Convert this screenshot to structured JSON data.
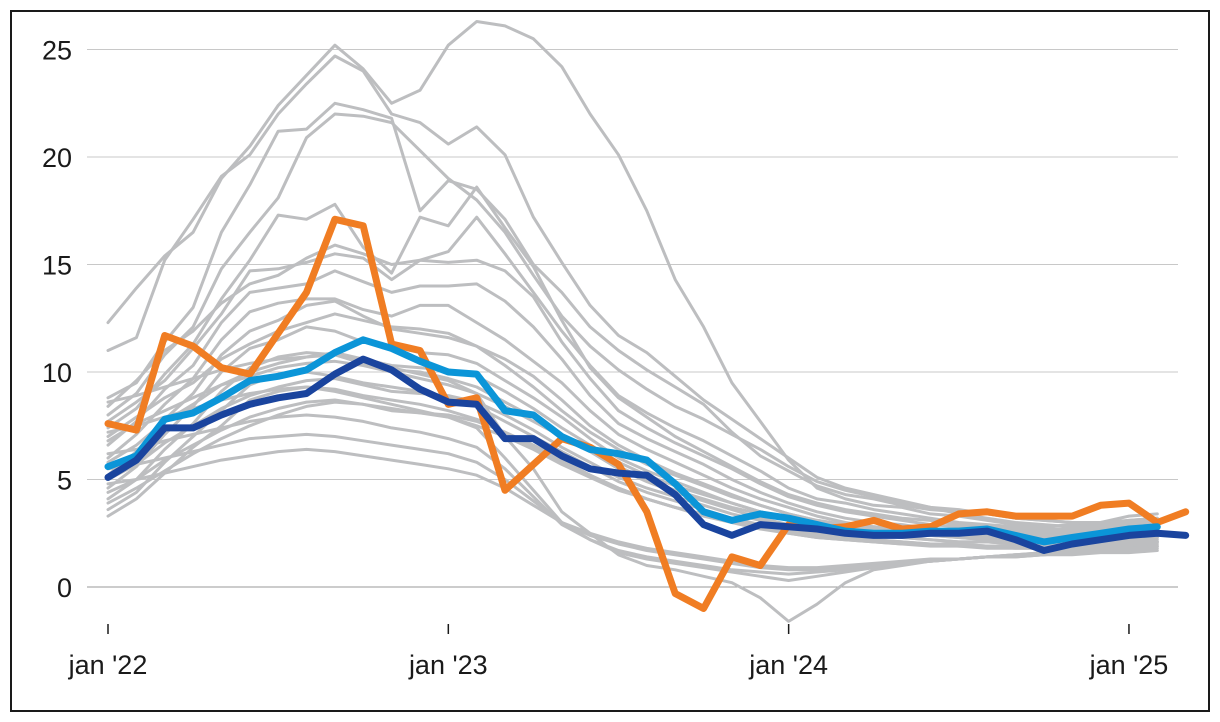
{
  "chart_data": {
    "type": "line",
    "title": "",
    "xlabel": "",
    "ylabel": "",
    "x_ticks": [
      "jan '22",
      "jan '23",
      "jan '24",
      "jan '25"
    ],
    "x_tick_months": [
      0,
      12,
      24,
      36
    ],
    "y_ticks": [
      "0",
      "5",
      "10",
      "15",
      "20",
      "25"
    ],
    "y_tick_values": [
      0,
      5,
      10,
      15,
      20,
      25
    ],
    "ylim": [
      -1.8,
      26.5
    ],
    "xlim": [
      0,
      38
    ],
    "grid": true,
    "colors": {
      "background_series": "#bdbec0",
      "highlight_orange": "#f07d23",
      "highlight_lightblue": "#0b95d8",
      "highlight_darkblue": "#1a449e",
      "grid": "#c8c8c8",
      "axis": "#1a1a1a"
    },
    "background_series": [
      {
        "name": "series 1",
        "values": [
          12.3,
          13.9,
          15.4,
          16.5,
          19.0,
          20.5,
          22.4,
          23.8,
          25.2,
          24.1,
          22.5,
          23.1,
          25.2,
          26.3,
          26.1,
          25.5,
          24.2,
          22.0,
          20.1,
          17.5,
          14.3,
          12.1,
          9.5,
          7.7,
          5.9,
          4.6,
          4.1,
          3.8,
          3.7,
          3.4,
          3.3,
          3.1,
          2.9,
          2.8,
          2.9,
          3.0,
          3.3,
          3.4
        ]
      },
      {
        "name": "series 2",
        "values": [
          11.0,
          11.6,
          15.2,
          17.1,
          19.1,
          20.1,
          22.0,
          23.4,
          24.7,
          24.0,
          22.0,
          21.6,
          20.6,
          21.4,
          20.1,
          17.2,
          15.1,
          13.1,
          11.7,
          10.9,
          9.8,
          8.7,
          7.8,
          6.9,
          6.0,
          5.1,
          4.6,
          4.3,
          4.0,
          3.7,
          3.4,
          3.2,
          3.0,
          2.9,
          2.8,
          2.9,
          3.1,
          3.2
        ]
      },
      {
        "name": "series 3",
        "values": [
          8.8,
          9.5,
          11.4,
          13.0,
          16.5,
          18.7,
          21.2,
          21.3,
          22.5,
          22.2,
          21.8,
          17.5,
          18.9,
          18.5,
          17.1,
          15.0,
          13.7,
          12.1,
          11.0,
          10.1,
          9.3,
          8.5,
          7.2,
          6.1,
          5.4,
          4.7,
          4.3,
          4.1,
          3.8,
          3.6,
          3.5,
          3.4,
          3.2,
          3.1,
          3.0,
          3.0,
          3.1,
          3.2
        ]
      },
      {
        "name": "series 4",
        "values": [
          8.0,
          9.0,
          10.8,
          12.1,
          14.8,
          16.5,
          18.1,
          20.9,
          22.0,
          21.9,
          21.6,
          20.3,
          19.0,
          18.0,
          16.5,
          14.5,
          12.6,
          11.2,
          10.1,
          9.2,
          8.4,
          7.8,
          7.1,
          6.4,
          5.6,
          4.9,
          4.5,
          4.2,
          3.9,
          3.7,
          3.6,
          3.4,
          3.2,
          3.1,
          3.0,
          2.9,
          3.0,
          3.1
        ]
      },
      {
        "name": "series 5",
        "values": [
          7.4,
          8.3,
          9.9,
          11.3,
          13.4,
          15.2,
          17.3,
          17.1,
          17.8,
          15.8,
          14.6,
          17.2,
          16.8,
          18.6,
          16.7,
          14.9,
          12.4,
          10.2,
          8.8,
          7.9,
          7.0,
          6.3,
          5.6,
          4.9,
          4.3,
          3.9,
          3.6,
          3.4,
          3.2,
          3.1,
          2.9,
          2.8,
          2.7,
          2.6,
          2.6,
          2.7,
          2.8,
          2.9
        ]
      },
      {
        "name": "series 6",
        "values": [
          7.7,
          8.6,
          9.6,
          11.1,
          12.7,
          14.7,
          14.8,
          15.1,
          15.5,
          15.3,
          14.3,
          15.2,
          15.1,
          15.2,
          14.7,
          13.5,
          11.4,
          9.7,
          8.2,
          7.4,
          6.7,
          6.1,
          5.5,
          4.8,
          4.2,
          3.8,
          3.5,
          3.3,
          3.1,
          2.9,
          2.8,
          2.7,
          2.6,
          2.5,
          2.5,
          2.6,
          2.7,
          2.8
        ]
      },
      {
        "name": "series 7",
        "values": [
          6.6,
          7.7,
          9.2,
          10.3,
          12.3,
          13.7,
          13.9,
          14.1,
          14.7,
          14.2,
          13.7,
          14.0,
          14.0,
          14.1,
          13.3,
          12.1,
          10.6,
          8.9,
          7.6,
          6.9,
          6.3,
          5.7,
          5.0,
          4.4,
          3.9,
          3.5,
          3.2,
          3.0,
          2.9,
          2.7,
          2.6,
          2.6,
          2.5,
          2.4,
          2.4,
          2.5,
          2.6,
          2.7
        ]
      },
      {
        "name": "series 8",
        "values": [
          6.0,
          7.1,
          8.5,
          9.7,
          11.5,
          12.8,
          13.2,
          13.4,
          13.4,
          12.9,
          12.6,
          13.1,
          13.1,
          12.3,
          11.5,
          10.5,
          9.5,
          8.2,
          7.1,
          6.4,
          5.8,
          5.2,
          4.6,
          4.1,
          3.7,
          3.3,
          3.0,
          2.8,
          2.7,
          2.6,
          2.5,
          2.4,
          2.3,
          2.3,
          2.3,
          2.4,
          2.5,
          2.6
        ]
      },
      {
        "name": "series 9",
        "values": [
          5.2,
          6.3,
          7.8,
          9.0,
          10.8,
          11.9,
          12.4,
          13.1,
          13.3,
          12.6,
          12.0,
          11.8,
          11.6,
          11.2,
          10.6,
          9.8,
          8.7,
          7.5,
          6.6,
          5.9,
          5.3,
          4.8,
          4.3,
          3.8,
          3.4,
          3.1,
          2.9,
          2.7,
          2.6,
          2.5,
          2.4,
          2.3,
          2.3,
          2.2,
          2.2,
          2.3,
          2.4,
          2.5
        ]
      },
      {
        "name": "series 10",
        "values": [
          4.6,
          5.6,
          7.1,
          8.4,
          10.0,
          11.1,
          11.5,
          12.1,
          11.9,
          11.4,
          11.2,
          10.9,
          10.8,
          10.4,
          9.6,
          8.8,
          7.9,
          6.9,
          6.0,
          5.4,
          4.9,
          4.4,
          3.9,
          3.5,
          3.2,
          2.9,
          2.7,
          2.6,
          2.5,
          2.4,
          2.3,
          2.2,
          2.2,
          2.1,
          2.1,
          2.2,
          2.3,
          2.4
        ]
      },
      {
        "name": "series 11",
        "values": [
          4.1,
          5.0,
          6.4,
          7.6,
          9.1,
          10.2,
          10.7,
          10.9,
          10.8,
          10.4,
          10.1,
          10.0,
          9.7,
          9.3,
          8.6,
          7.9,
          7.0,
          6.3,
          5.5,
          4.9,
          4.4,
          4.0,
          3.6,
          3.2,
          2.9,
          2.7,
          2.5,
          2.4,
          2.3,
          2.2,
          2.1,
          2.1,
          2.0,
          2.0,
          2.0,
          2.1,
          2.2,
          2.3
        ]
      },
      {
        "name": "series 12",
        "values": [
          3.6,
          4.4,
          5.8,
          7.0,
          8.2,
          9.4,
          9.9,
          10.0,
          9.8,
          9.5,
          9.3,
          9.1,
          8.8,
          8.4,
          7.7,
          7.0,
          6.3,
          5.6,
          4.9,
          4.4,
          4.0,
          3.6,
          3.2,
          2.9,
          2.7,
          2.5,
          2.3,
          2.2,
          2.1,
          2.0,
          2.0,
          1.9,
          1.9,
          1.9,
          1.9,
          2.0,
          2.1,
          2.2
        ]
      },
      {
        "name": "series 13",
        "values": [
          3.3,
          4.1,
          5.3,
          6.5,
          7.5,
          8.7,
          9.1,
          9.3,
          9.2,
          8.9,
          8.7,
          8.5,
          8.2,
          7.8,
          7.2,
          6.5,
          5.8,
          5.2,
          4.6,
          4.1,
          3.7,
          3.3,
          3.0,
          2.7,
          2.5,
          2.3,
          2.2,
          2.1,
          2.0,
          1.9,
          1.9,
          1.8,
          1.8,
          1.8,
          1.8,
          1.9,
          2.0,
          2.1
        ]
      },
      {
        "name": "series 14",
        "values": [
          8.4,
          9.6,
          11.0,
          11.9,
          13.2,
          14.1,
          14.5,
          15.3,
          15.9,
          15.5,
          15.0,
          15.2,
          15.6,
          17.2,
          15.5,
          13.7,
          11.9,
          10.3,
          8.9,
          8.1,
          7.4,
          6.8,
          6.1,
          5.4,
          4.6,
          4.1,
          3.9,
          3.6,
          3.4,
          3.2,
          3.0,
          2.9,
          2.8,
          2.7,
          2.7,
          2.8,
          2.9,
          3.0
        ]
      },
      {
        "name": "series 15",
        "values": [
          7.0,
          7.9,
          8.8,
          9.5,
          10.6,
          11.3,
          11.9,
          12.3,
          12.7,
          12.4,
          12.1,
          12.0,
          11.8,
          11.2,
          10.3,
          9.3,
          8.2,
          7.2,
          6.4,
          5.7,
          5.2,
          4.7,
          4.2,
          3.8,
          3.4,
          3.1,
          2.9,
          2.8,
          2.7,
          2.6,
          2.5,
          2.4,
          2.3,
          2.3,
          2.3,
          2.4,
          2.5,
          2.6
        ]
      },
      {
        "name": "series 16",
        "values": [
          5.8,
          6.6,
          7.7,
          8.5,
          9.4,
          10.0,
          10.4,
          10.7,
          10.9,
          10.6,
          10.3,
          10.2,
          10.1,
          9.8,
          9.1,
          8.3,
          7.4,
          6.6,
          5.8,
          5.2,
          4.7,
          4.3,
          3.9,
          3.5,
          3.2,
          3.0,
          2.8,
          2.7,
          2.6,
          2.5,
          2.4,
          2.3,
          2.2,
          2.2,
          2.2,
          2.3,
          2.4,
          2.5
        ]
      },
      {
        "name": "series 17",
        "values": [
          5.0,
          5.7,
          6.7,
          7.5,
          8.3,
          8.9,
          9.3,
          9.6,
          9.7,
          9.4,
          9.1,
          9.0,
          8.9,
          8.6,
          8.0,
          7.3,
          6.5,
          5.8,
          5.1,
          4.6,
          4.2,
          3.8,
          3.4,
          3.1,
          2.8,
          2.6,
          2.5,
          2.4,
          2.3,
          2.2,
          2.1,
          2.1,
          2.0,
          2.0,
          2.0,
          2.1,
          2.2,
          2.3
        ]
      },
      {
        "name": "series 18",
        "values": [
          4.4,
          5.0,
          5.9,
          6.6,
          7.3,
          7.9,
          8.3,
          8.6,
          8.7,
          8.5,
          8.2,
          8.1,
          8.0,
          7.7,
          7.2,
          6.6,
          5.9,
          5.2,
          4.6,
          4.1,
          3.7,
          3.4,
          3.0,
          2.8,
          2.5,
          2.3,
          2.2,
          2.1,
          2.0,
          2.0,
          1.9,
          1.9,
          1.8,
          1.8,
          1.8,
          1.9,
          2.0,
          2.1
        ]
      },
      {
        "name": "series 19",
        "values": [
          8.6,
          8.9,
          9.3,
          9.7,
          10.1,
          10.4,
          10.6,
          10.7,
          10.8,
          10.5,
          10.2,
          9.9,
          9.6,
          9.0,
          7.0,
          5.5,
          3.5,
          2.5,
          1.5,
          1.0,
          0.8,
          0.5,
          0.2,
          -0.5,
          -1.6,
          -0.8,
          0.2,
          0.8,
          1.0,
          1.2,
          1.3,
          1.4,
          1.5,
          1.5,
          1.6,
          1.7,
          1.8,
          1.9
        ]
      },
      {
        "name": "series 20",
        "values": [
          7.2,
          7.5,
          7.9,
          8.3,
          8.7,
          9.0,
          9.2,
          9.3,
          9.1,
          8.8,
          8.5,
          8.2,
          7.9,
          7.4,
          6.0,
          4.5,
          3.0,
          2.2,
          1.6,
          1.3,
          1.1,
          0.9,
          0.7,
          0.5,
          0.3,
          0.5,
          0.7,
          0.9,
          1.1,
          1.2,
          1.3,
          1.4,
          1.5,
          1.6,
          1.7,
          1.8,
          1.9,
          2.0
        ]
      },
      {
        "name": "series 21",
        "values": [
          6.2,
          6.4,
          6.8,
          7.1,
          7.4,
          7.7,
          7.9,
          8.0,
          7.9,
          7.7,
          7.4,
          7.2,
          6.9,
          6.5,
          5.5,
          4.2,
          2.9,
          2.2,
          1.7,
          1.4,
          1.2,
          1.0,
          0.8,
          0.7,
          0.6,
          0.7,
          0.8,
          1.0,
          1.1,
          1.2,
          1.3,
          1.4,
          1.5,
          1.6,
          1.7,
          1.8,
          1.8,
          1.9
        ]
      },
      {
        "name": "series 22",
        "values": [
          5.5,
          5.7,
          6.0,
          6.3,
          6.6,
          6.9,
          7.0,
          7.1,
          7.0,
          6.8,
          6.6,
          6.4,
          6.2,
          5.8,
          5.0,
          4.0,
          3.0,
          2.4,
          2.0,
          1.7,
          1.5,
          1.3,
          1.1,
          0.9,
          0.8,
          0.8,
          0.9,
          1.0,
          1.1,
          1.2,
          1.3,
          1.4,
          1.4,
          1.5,
          1.6,
          1.7,
          1.7,
          1.8
        ]
      },
      {
        "name": "series 23",
        "values": [
          4.8,
          5.0,
          5.3,
          5.6,
          5.9,
          6.1,
          6.3,
          6.4,
          6.3,
          6.1,
          5.9,
          5.7,
          5.5,
          5.2,
          4.6,
          3.8,
          3.0,
          2.5,
          2.1,
          1.8,
          1.6,
          1.4,
          1.2,
          1.0,
          0.9,
          0.9,
          1.0,
          1.1,
          1.2,
          1.3,
          1.3,
          1.4,
          1.4,
          1.5,
          1.5,
          1.6,
          1.6,
          1.7
        ]
      },
      {
        "name": "series 24",
        "values": [
          6.8,
          7.6,
          8.2,
          8.8,
          9.4,
          9.8,
          10.2,
          10.4,
          10.5,
          10.3,
          10.0,
          9.7,
          9.4,
          9.0,
          8.4,
          7.7,
          7.0,
          6.3,
          5.6,
          5.0,
          4.5,
          4.1,
          3.7,
          3.4,
          3.1,
          2.9,
          2.7,
          2.6,
          2.5,
          2.4,
          2.3,
          2.2,
          2.1,
          2.1,
          2.1,
          2.2,
          2.3,
          2.4
        ]
      },
      {
        "name": "series 25",
        "values": [
          3.9,
          4.6,
          5.4,
          6.2,
          6.9,
          7.5,
          8.0,
          8.4,
          8.6,
          8.5,
          8.3,
          8.1,
          7.9,
          7.5,
          7.0,
          6.4,
          5.7,
          5.1,
          4.5,
          4.1,
          3.7,
          3.4,
          3.1,
          2.8,
          2.6,
          2.4,
          2.3,
          2.2,
          2.1,
          2.0,
          2.0,
          1.9,
          1.9,
          1.8,
          1.8,
          1.9,
          2.0,
          2.1
        ]
      }
    ],
    "highlight_series": [
      {
        "name": "orange",
        "color": "#f07d23",
        "values": [
          7.6,
          7.3,
          11.7,
          11.2,
          10.2,
          9.9,
          11.8,
          13.7,
          17.1,
          16.8,
          11.3,
          11.0,
          8.5,
          8.8,
          4.5,
          5.7,
          6.9,
          6.5,
          5.7,
          3.5,
          -0.3,
          -1.0,
          1.4,
          1.0,
          2.9,
          2.7,
          2.8,
          3.1,
          2.7,
          2.8,
          3.4,
          3.5,
          3.3,
          3.3,
          3.3,
          3.8,
          3.9,
          3.0,
          3.5
        ]
      },
      {
        "name": "light blue",
        "color": "#0b95d8",
        "values": [
          5.6,
          6.1,
          7.8,
          8.1,
          8.8,
          9.6,
          9.8,
          10.1,
          10.9,
          11.5,
          11.1,
          10.5,
          10.0,
          9.9,
          8.2,
          8.0,
          7.0,
          6.4,
          6.2,
          5.9,
          4.8,
          3.5,
          3.1,
          3.4,
          3.2,
          2.9,
          2.6,
          2.5,
          2.5,
          2.6,
          2.6,
          2.7,
          2.4,
          2.1,
          2.3,
          2.5,
          2.7,
          2.8
        ]
      },
      {
        "name": "dark blue",
        "color": "#1a449e",
        "values": [
          5.1,
          5.9,
          7.4,
          7.4,
          8.0,
          8.5,
          8.8,
          9.0,
          9.9,
          10.6,
          10.1,
          9.2,
          8.6,
          8.5,
          6.9,
          6.9,
          6.1,
          5.5,
          5.3,
          5.2,
          4.3,
          2.9,
          2.4,
          2.9,
          2.8,
          2.7,
          2.5,
          2.4,
          2.4,
          2.5,
          2.5,
          2.6,
          2.2,
          1.7,
          2.0,
          2.2,
          2.4,
          2.5,
          2.4
        ]
      }
    ]
  }
}
